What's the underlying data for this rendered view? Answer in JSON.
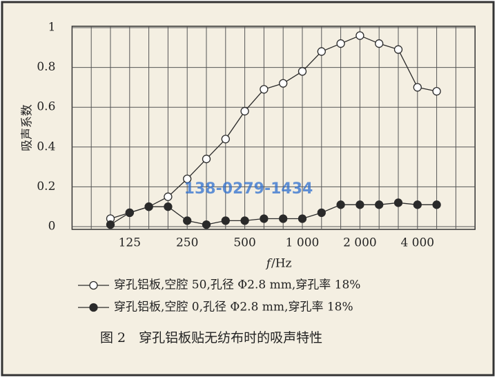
{
  "chart_data": {
    "type": "line",
    "ylabel": "吸声系数",
    "xlabel_italic": "f",
    "xlabel_rest": "/Hz",
    "caption": "图 2　穿孔铝板贴无纺布时的吸声特性",
    "watermark": "138-0279-1434",
    "categories": [
      null,
      "125",
      null,
      null,
      "250",
      null,
      null,
      "500",
      null,
      null,
      "1 000",
      null,
      null,
      "2 000",
      null,
      null,
      "4 000",
      null
    ],
    "ylim": [
      0,
      1
    ],
    "yticks": [
      0,
      0.2,
      0.4,
      0.6,
      0.8,
      1
    ],
    "grid": true,
    "series": [
      {
        "name": "穿孔铝板,空腔 50,孔径 Φ2.8 mm,穿孔率 18%",
        "color": "#2a2a2a",
        "marker": "open",
        "values": [
          0.04,
          0.07,
          0.1,
          0.15,
          0.24,
          0.34,
          0.44,
          0.58,
          0.69,
          0.72,
          0.78,
          0.88,
          0.92,
          0.96,
          0.92,
          0.89,
          0.7,
          0.68
        ]
      },
      {
        "name": "穿孔铝板,空腔 0,孔径 Φ2.8 mm,穿孔率 18%",
        "color": "#2a2a2a",
        "marker": "filled",
        "values": [
          0.01,
          0.07,
          0.1,
          0.1,
          0.03,
          0.01,
          0.03,
          0.03,
          0.04,
          0.04,
          0.04,
          0.07,
          0.11,
          0.11,
          0.11,
          0.12,
          0.11,
          0.11
        ]
      }
    ]
  }
}
